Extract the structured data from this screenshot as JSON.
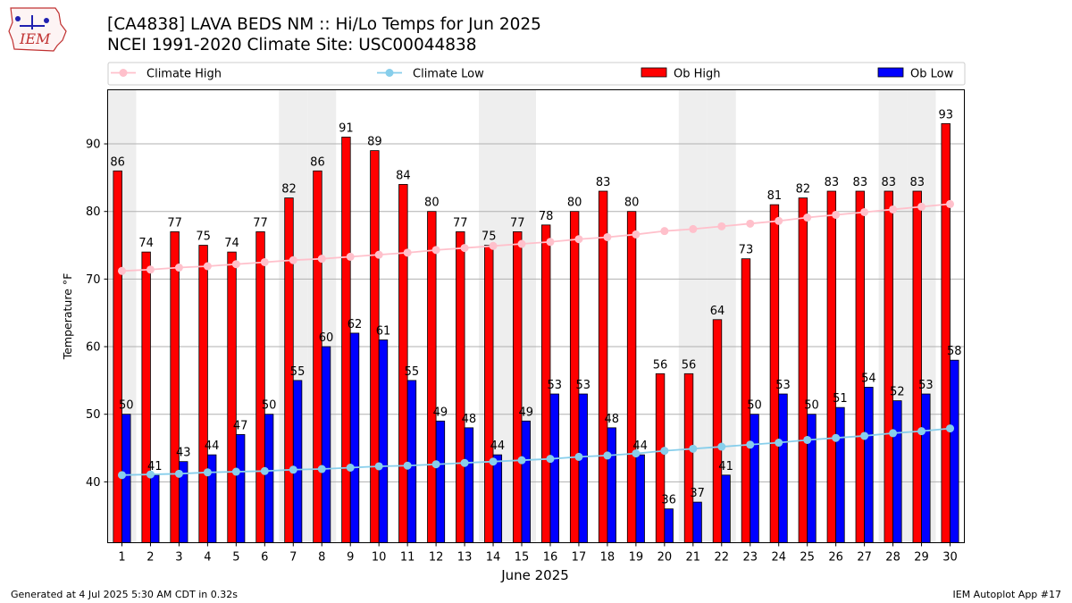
{
  "header": {
    "title_line1": "[CA4838] LAVA BEDS NM :: Hi/Lo Temps for Jun 2025",
    "title_line2": "NCEI 1991-2020 Climate Site: USC00044838"
  },
  "logo": {
    "text": "IEM"
  },
  "footer": {
    "generated": "Generated at 4 Jul 2025 5:30 AM CDT in 0.32s",
    "app": "IEM Autoplot App #17"
  },
  "colors": {
    "ob_high": "#ff0000",
    "ob_low": "#0000ff",
    "climate_high": "#ffc0cb",
    "climate_low": "#87ceeb",
    "weekend_shade": "#eeeeee",
    "grid": "#b0b0b0"
  },
  "chart_data": {
    "type": "bar",
    "xlabel": "June 2025",
    "ylabel": "Temperature °F",
    "ylim": [
      31,
      98
    ],
    "yticks": [
      40,
      50,
      60,
      70,
      80,
      90
    ],
    "grid": "horizontal",
    "legend_placement": "top",
    "categories": [
      "1",
      "2",
      "3",
      "4",
      "5",
      "6",
      "7",
      "8",
      "9",
      "10",
      "11",
      "12",
      "13",
      "14",
      "15",
      "16",
      "17",
      "18",
      "19",
      "20",
      "21",
      "22",
      "23",
      "24",
      "25",
      "26",
      "27",
      "28",
      "29",
      "30"
    ],
    "shaded_days": [
      1,
      7,
      8,
      14,
      15,
      21,
      22,
      28,
      29
    ],
    "series": [
      {
        "name": "Ob High",
        "kind": "bar",
        "values": [
          86,
          74,
          77,
          75,
          74,
          77,
          82,
          86,
          91,
          89,
          84,
          80,
          77,
          75,
          77,
          78,
          80,
          83,
          80,
          56,
          56,
          64,
          73,
          81,
          82,
          83,
          83,
          83,
          83,
          93
        ]
      },
      {
        "name": "Ob Low",
        "kind": "bar",
        "values": [
          50,
          41,
          43,
          44,
          47,
          50,
          55,
          60,
          62,
          61,
          55,
          49,
          48,
          44,
          49,
          53,
          53,
          48,
          44,
          36,
          37,
          41,
          50,
          53,
          50,
          51,
          54,
          52,
          53,
          58
        ]
      },
      {
        "name": "Climate High",
        "kind": "line",
        "values": [
          71.2,
          71.4,
          71.7,
          71.9,
          72.2,
          72.5,
          72.8,
          73.0,
          73.3,
          73.6,
          73.9,
          74.3,
          74.6,
          74.9,
          75.2,
          75.5,
          75.9,
          76.2,
          76.6,
          77.1,
          77.4,
          77.8,
          78.2,
          78.6,
          79.1,
          79.5,
          79.9,
          80.3,
          80.7,
          81.1
        ]
      },
      {
        "name": "Climate Low",
        "kind": "line",
        "values": [
          41.0,
          41.1,
          41.2,
          41.4,
          41.5,
          41.6,
          41.8,
          41.9,
          42.1,
          42.3,
          42.4,
          42.6,
          42.8,
          43.0,
          43.2,
          43.4,
          43.7,
          43.9,
          44.2,
          44.6,
          44.9,
          45.2,
          45.5,
          45.8,
          46.2,
          46.5,
          46.8,
          47.2,
          47.5,
          47.9
        ]
      }
    ]
  }
}
